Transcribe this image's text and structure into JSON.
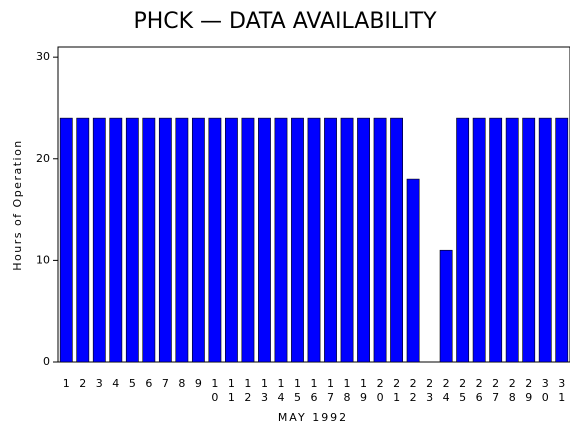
{
  "chart_data": {
    "type": "bar",
    "title": "PHCK — DATA AVAILABILITY",
    "x_label": "MAY 1992",
    "y_label": "Hours of Operation",
    "categories": [
      "1",
      "2",
      "3",
      "4",
      "5",
      "6",
      "7",
      "8",
      "9",
      "10",
      "11",
      "12",
      "13",
      "14",
      "15",
      "16",
      "17",
      "18",
      "19",
      "20",
      "21",
      "22",
      "23",
      "24",
      "25",
      "26",
      "27",
      "28",
      "29",
      "30",
      "31"
    ],
    "values": [
      24,
      24,
      24,
      24,
      24,
      24,
      24,
      24,
      24,
      24,
      24,
      24,
      24,
      24,
      24,
      24,
      24,
      24,
      24,
      24,
      24,
      18,
      0,
      11,
      24,
      24,
      24,
      24,
      24,
      24,
      24
    ],
    "color": "#0000ff",
    "ylim": [
      0,
      31
    ],
    "yticks": [
      0,
      10,
      20,
      30
    ],
    "grid": false
  }
}
